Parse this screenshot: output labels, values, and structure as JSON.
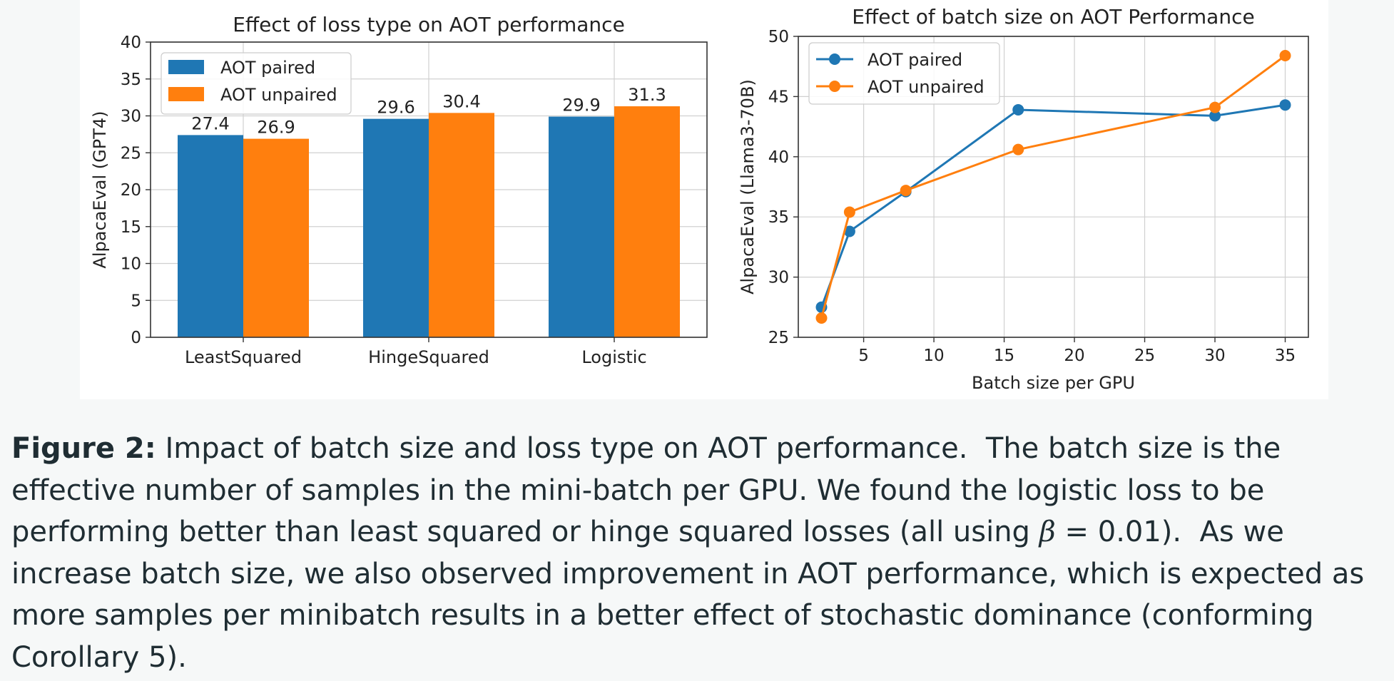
{
  "chart_data": [
    {
      "type": "bar",
      "title": "Effect of loss type on AOT performance",
      "xlabel": "",
      "ylabel": "AlpacaEval (GPT4)",
      "ylim": [
        0,
        40
      ],
      "yticks": [
        0,
        5,
        10,
        15,
        20,
        25,
        30,
        35,
        40
      ],
      "categories": [
        "LeastSquared",
        "HingeSquared",
        "Logistic"
      ],
      "series": [
        {
          "name": "AOT paired",
          "color": "#1f77b4",
          "values": [
            27.4,
            29.6,
            29.9
          ],
          "labels": [
            "27.4",
            "29.6",
            "29.9"
          ]
        },
        {
          "name": "AOT unpaired",
          "color": "#ff7f0e",
          "values": [
            26.9,
            30.4,
            31.3
          ],
          "labels": [
            "26.9",
            "30.4",
            "31.3"
          ]
        }
      ],
      "grid": true,
      "legend": "top-left"
    },
    {
      "type": "line",
      "title": "Effect of batch size on AOT Performance",
      "xlabel": "Batch size per GPU",
      "ylabel": "AlpacaEval (Llama3-70B)",
      "xlim": [
        0.35,
        36.65
      ],
      "ylim": [
        25,
        50
      ],
      "xticks": [
        5,
        10,
        15,
        20,
        25,
        30,
        35
      ],
      "yticks": [
        25,
        30,
        35,
        40,
        45,
        50
      ],
      "series": [
        {
          "name": "AOT paired",
          "color": "#1f77b4",
          "x": [
            2,
            4,
            8,
            16,
            30,
            35
          ],
          "y": [
            27.5,
            33.8,
            37.1,
            43.9,
            43.4,
            44.3
          ]
        },
        {
          "name": "AOT unpaired",
          "color": "#ff7f0e",
          "x": [
            2,
            4,
            8,
            16,
            30,
            35
          ],
          "y": [
            26.6,
            35.4,
            37.2,
            40.6,
            44.1,
            48.4
          ]
        }
      ],
      "grid": true,
      "legend": "top-left"
    }
  ],
  "caption": {
    "label": "Figure 2:",
    "text_before_beta": " Impact of batch size and loss type on AOT performance.  The batch size is the effective number of samples in the mini-batch per GPU. We found the logistic loss to be performing better than least squared or hinge squared losses (all using ",
    "beta_symbol": "β",
    "text_after_beta": " = 0.01).  As we increase batch size, we also observed improvement in AOT performance, which is expected as more samples per minibatch results in a better effect of stochastic dominance (conforming Corollary 5)."
  }
}
